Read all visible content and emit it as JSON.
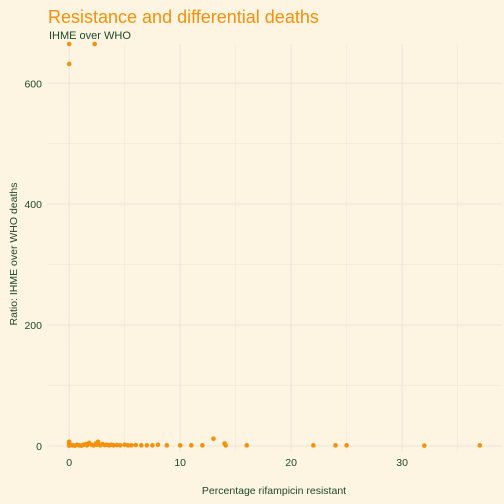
{
  "colors": {
    "background": "#fdf4e1",
    "title": "#f5900a",
    "text": "#1c4a2a",
    "grid": "#ece6d7",
    "points": "#f5900a"
  },
  "chart_data": {
    "type": "scatter",
    "title": "Resistance and differential deaths",
    "subtitle": "IHME over WHO",
    "xlabel": "Percentage rifampicin resistant",
    "ylabel": "Ratio: IHME over WHO deaths",
    "xlim": [
      -2,
      39
    ],
    "ylim": [
      -10,
      665
    ],
    "xticks": [
      0,
      10,
      20,
      30
    ],
    "yticks": [
      0,
      200,
      400,
      600
    ],
    "grid": true,
    "series": [
      {
        "points": [
          [
            0,
            665
          ],
          [
            2.3,
            665
          ],
          [
            0,
            632
          ],
          [
            0,
            0.5
          ],
          [
            0,
            2
          ],
          [
            0,
            3
          ],
          [
            0,
            5
          ],
          [
            0,
            7
          ],
          [
            0.3,
            1
          ],
          [
            0.5,
            0.5
          ],
          [
            0.7,
            2
          ],
          [
            0.9,
            1
          ],
          [
            1.1,
            0.5
          ],
          [
            1.3,
            2
          ],
          [
            1.5,
            3
          ],
          [
            1.6,
            1
          ],
          [
            1.8,
            5
          ],
          [
            2.0,
            2
          ],
          [
            2.2,
            1
          ],
          [
            2.4,
            4
          ],
          [
            2.5,
            2
          ],
          [
            2.6,
            7
          ],
          [
            2.8,
            1
          ],
          [
            3.0,
            3
          ],
          [
            3.2,
            1.5
          ],
          [
            3.4,
            2
          ],
          [
            3.6,
            1
          ],
          [
            3.8,
            2
          ],
          [
            4.0,
            1
          ],
          [
            4.3,
            1.5
          ],
          [
            4.6,
            1
          ],
          [
            5.0,
            2
          ],
          [
            5.3,
            1
          ],
          [
            5.6,
            1
          ],
          [
            6.0,
            1.5
          ],
          [
            6.5,
            1
          ],
          [
            7.0,
            1
          ],
          [
            7.5,
            1
          ],
          [
            8.0,
            2
          ],
          [
            8.8,
            1
          ],
          [
            10.0,
            1
          ],
          [
            11.0,
            1
          ],
          [
            12.0,
            1
          ],
          [
            13.0,
            12
          ],
          [
            14.0,
            4
          ],
          [
            14.1,
            1
          ],
          [
            16.0,
            1
          ],
          [
            22.0,
            1
          ],
          [
            24.0,
            1
          ],
          [
            25.0,
            1
          ],
          [
            32.0,
            0.5
          ],
          [
            37.0,
            1
          ]
        ]
      }
    ]
  }
}
